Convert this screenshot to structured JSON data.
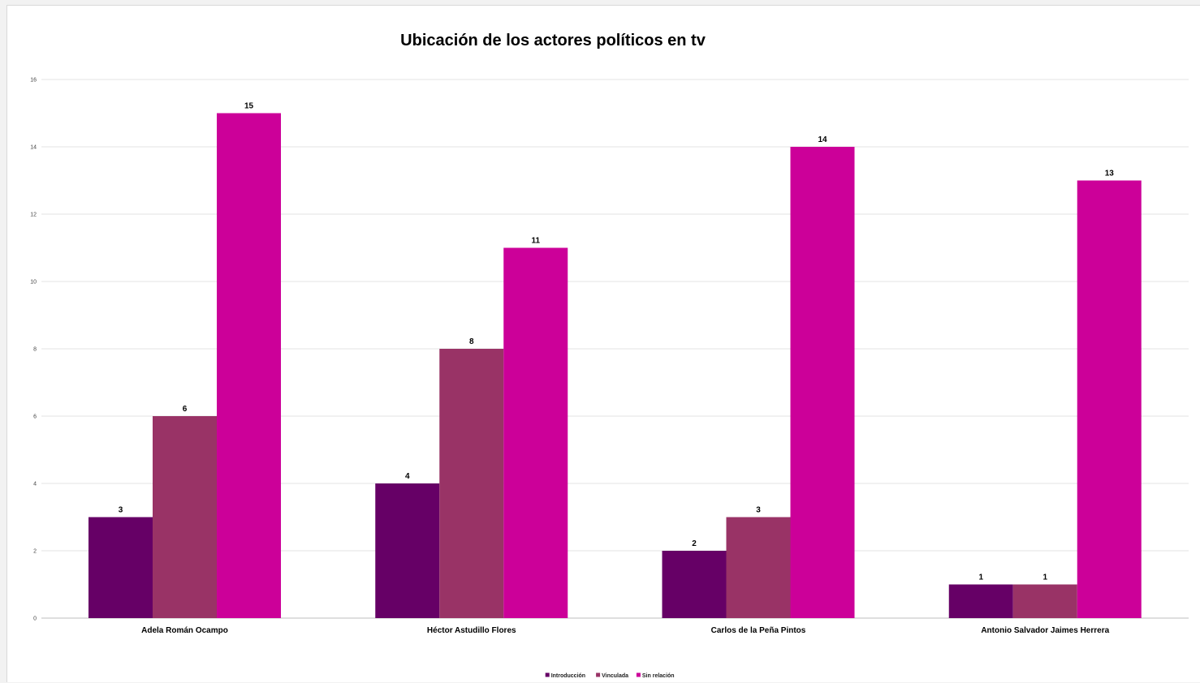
{
  "chart_data": {
    "type": "bar",
    "title": "Ubicación de los actores políticos en tv",
    "categories": [
      "Adela  Román Ocampo",
      "Héctor Astudillo Flores",
      "Carlos de la Peña Pintos",
      "Antonio Salvador Jaimes Herrera"
    ],
    "series": [
      {
        "name": "Introducción",
        "color": "#660066",
        "values": [
          3,
          4,
          2,
          1
        ]
      },
      {
        "name": "Vinculada",
        "color": "#993366",
        "values": [
          6,
          8,
          3,
          1
        ]
      },
      {
        "name": "Sin relación",
        "color": "#CC0099",
        "values": [
          15,
          11,
          14,
          13
        ]
      }
    ],
    "ylim": [
      0,
      16
    ],
    "yticks": [
      0,
      2,
      4,
      6,
      8,
      10,
      12,
      14,
      16
    ],
    "grid": true,
    "data_labels": true,
    "legend_position": "bottom"
  }
}
